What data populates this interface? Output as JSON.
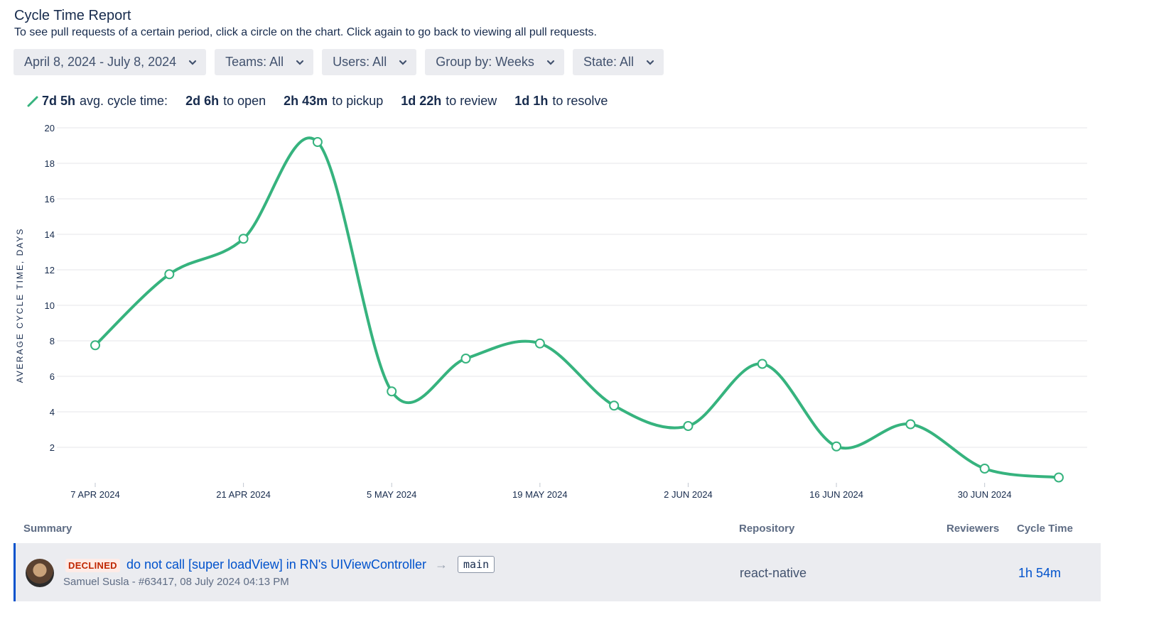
{
  "header": {
    "title": "Cycle Time Report",
    "subtitle": "To see pull requests of a certain period, click a circle on the chart. Click again to go back to viewing all pull requests."
  },
  "filters": [
    {
      "label": "April 8, 2024 - July 8, 2024"
    },
    {
      "label": "Teams: All"
    },
    {
      "label": "Users: All"
    },
    {
      "label": "Group by: Weeks"
    },
    {
      "label": "State: All"
    }
  ],
  "stats": {
    "avg": {
      "value": "7d 5h",
      "label": "avg. cycle time:"
    },
    "open": {
      "value": "2d 6h",
      "label": "to open"
    },
    "pickup": {
      "value": "2h 43m",
      "label": "to pickup"
    },
    "review": {
      "value": "1d 22h",
      "label": "to review"
    },
    "resolve": {
      "value": "1d 1h",
      "label": "to resolve"
    }
  },
  "colors": {
    "line": "#36b37e",
    "link": "#0052cc",
    "declined": "#bf2600"
  },
  "chart_data": {
    "type": "line",
    "x": [
      "7 Apr 2024",
      "14 Apr 2024",
      "21 Apr 2024",
      "28 Apr 2024",
      "5 May 2024",
      "12 May 2024",
      "19 May 2024",
      "26 May 2024",
      "2 Jun 2024",
      "9 Jun 2024",
      "16 Jun 2024",
      "23 Jun 2024",
      "30 Jun 2024",
      "7 Jul 2024"
    ],
    "values": [
      7.75,
      11.75,
      13.75,
      19.2,
      5.15,
      7.0,
      7.85,
      4.35,
      3.2,
      6.7,
      2.05,
      3.3,
      0.8,
      0.3
    ],
    "ylabel": "AVERAGE CYCLE TIME, DAYS",
    "xticks": [
      "7 APR 2024",
      "21 APR 2024",
      "5 MAY 2024",
      "19 MAY 2024",
      "2 JUN 2024",
      "16 JUN 2024",
      "30 JUN 2024"
    ],
    "yticks": [
      2,
      4,
      6,
      8,
      10,
      12,
      14,
      16,
      18,
      20
    ],
    "ylim": [
      0,
      20
    ],
    "grid": true,
    "legend": "none"
  },
  "table": {
    "headers": {
      "summary": "Summary",
      "repository": "Repository",
      "reviewers": "Reviewers",
      "cycle_time": "Cycle Time"
    },
    "rows": [
      {
        "status": "DECLINED",
        "title": "do not call [super loadView] in RN's UIViewController",
        "arrow": "→",
        "branch": "main",
        "meta": "Samuel Susla - #63417, 08 July 2024 04:13 PM",
        "repository": "react-native",
        "reviewers": "",
        "cycle_time": "1h 54m"
      }
    ]
  }
}
